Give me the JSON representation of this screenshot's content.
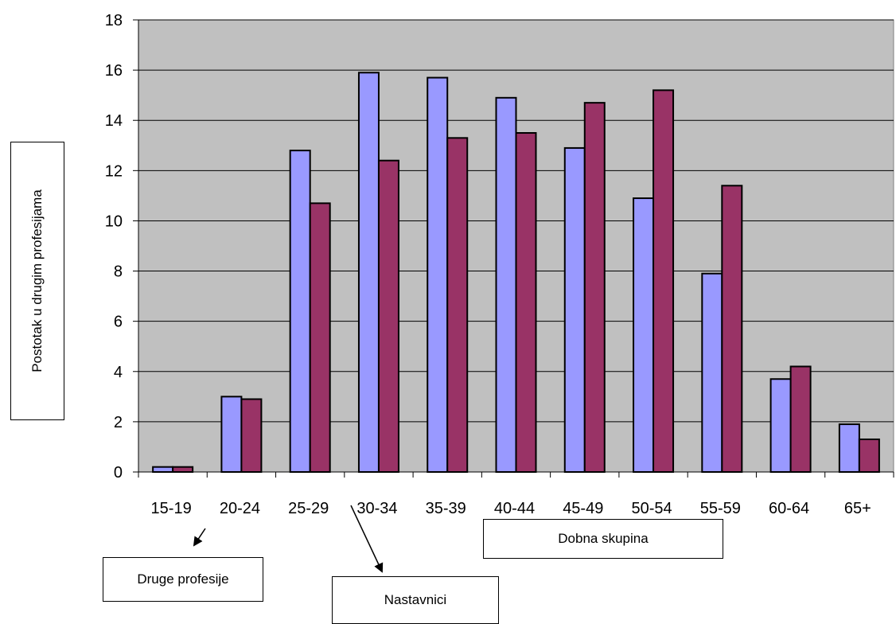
{
  "chart_data": {
    "type": "bar",
    "ylabel": "Postotak u drugim profesijama",
    "xlabel": "Dobna skupina",
    "ylim": [
      0,
      18
    ],
    "yticks": [
      0,
      2,
      4,
      6,
      8,
      10,
      12,
      14,
      16,
      18
    ],
    "grid": true,
    "categories": [
      "15-19",
      "20-24",
      "25-29",
      "30-34",
      "35-39",
      "40-44",
      "45-49",
      "50-54",
      "55-59",
      "60-64",
      "65+"
    ],
    "series": [
      {
        "name": "Nastavnici",
        "color": "#9999FF",
        "values": [
          0.2,
          3.0,
          12.8,
          15.9,
          15.7,
          14.9,
          12.9,
          10.9,
          7.9,
          3.7,
          1.9
        ]
      },
      {
        "name": "Druge profesije",
        "color": "#993366",
        "values": [
          0.2,
          2.9,
          10.7,
          12.4,
          13.3,
          13.5,
          14.7,
          15.2,
          11.4,
          4.2,
          1.3
        ]
      }
    ],
    "plot_background": "#C0C0C0",
    "annotations": {
      "druge": "Druge profesije",
      "nastavnici": "Nastavnici"
    }
  }
}
